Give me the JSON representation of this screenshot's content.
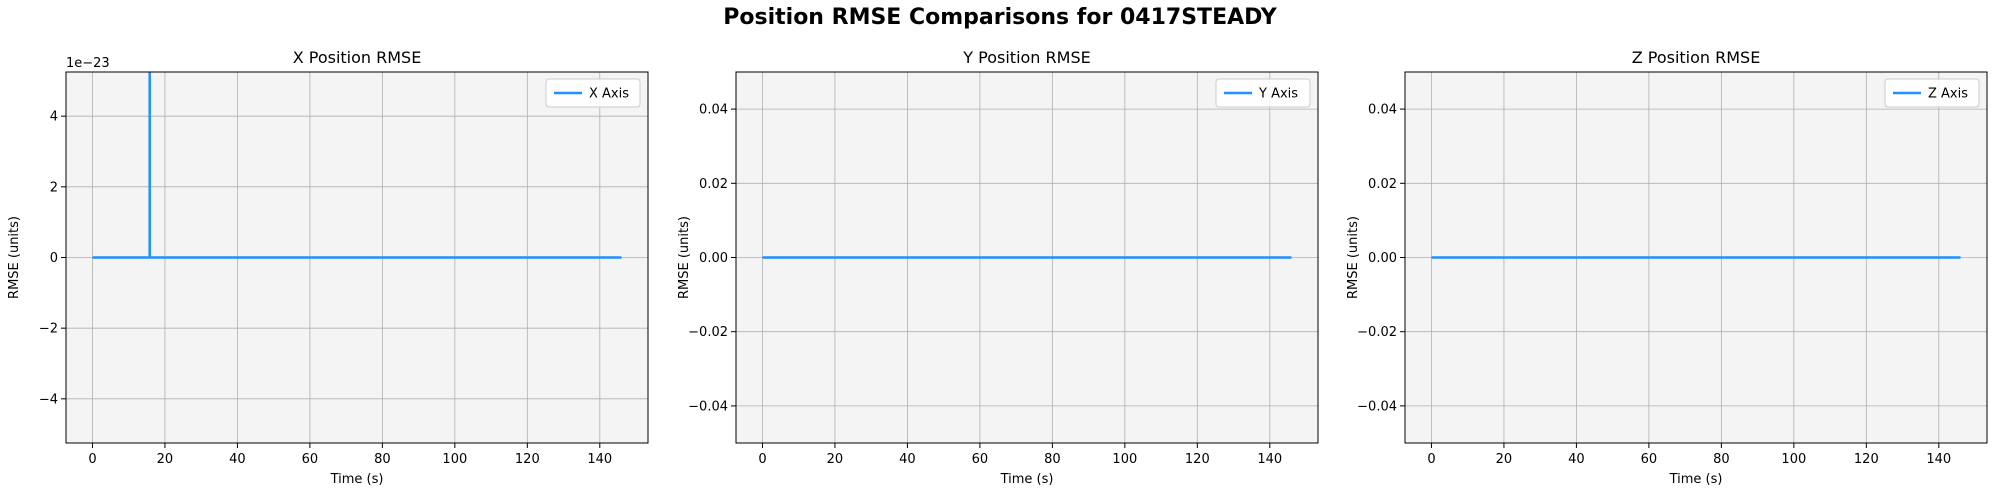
{
  "suptitle": "Position RMSE Comparisons for 0417STEADY",
  "colors": {
    "line": "#1e90ff",
    "axes_bg": "#f4f4f4",
    "grid": "#b0b0b0"
  },
  "chart_data": [
    {
      "type": "line",
      "title": "X Position RMSE",
      "xlabel": "Time (s)",
      "ylabel": "RMSE (units)",
      "xlim": [
        -7.3,
        153.3
      ],
      "ylim": [
        -5.25,
        5.25
      ],
      "xticks": [
        0,
        20,
        40,
        60,
        80,
        100,
        120,
        140
      ],
      "xtick_labels": [
        "0",
        "20",
        "40",
        "60",
        "80",
        "100",
        "120",
        "140"
      ],
      "yticks": [
        -4,
        -2,
        0,
        2,
        4
      ],
      "ytick_labels": [
        "−4",
        "−2",
        "0",
        "2",
        "4"
      ],
      "offset_text": "1e−23",
      "grid": true,
      "legend": "upper right",
      "series": [
        {
          "name": "X Axis",
          "x": [
            0,
            15.8,
            15.8,
            15.8,
            146
          ],
          "y": [
            0,
            0,
            5.5,
            0,
            0
          ]
        }
      ]
    },
    {
      "type": "line",
      "title": "Y Position RMSE",
      "xlabel": "Time (s)",
      "ylabel": "RMSE (units)",
      "xlim": [
        -7.3,
        153.3
      ],
      "ylim": [
        -0.05,
        0.05
      ],
      "xticks": [
        0,
        20,
        40,
        60,
        80,
        100,
        120,
        140
      ],
      "xtick_labels": [
        "0",
        "20",
        "40",
        "60",
        "80",
        "100",
        "120",
        "140"
      ],
      "yticks": [
        -0.04,
        -0.02,
        0,
        0.02,
        0.04
      ],
      "ytick_labels": [
        "−0.04",
        "−0.02",
        "0.00",
        "0.02",
        "0.04"
      ],
      "offset_text": "",
      "grid": true,
      "legend": "upper right",
      "series": [
        {
          "name": "Y Axis",
          "x": [
            0,
            146
          ],
          "y": [
            0,
            0
          ]
        }
      ]
    },
    {
      "type": "line",
      "title": "Z Position RMSE",
      "xlabel": "Time (s)",
      "ylabel": "RMSE (units)",
      "xlim": [
        -7.3,
        153.3
      ],
      "ylim": [
        -0.05,
        0.05
      ],
      "xticks": [
        0,
        20,
        40,
        60,
        80,
        100,
        120,
        140
      ],
      "xtick_labels": [
        "0",
        "20",
        "40",
        "60",
        "80",
        "100",
        "120",
        "140"
      ],
      "yticks": [
        -0.04,
        -0.02,
        0,
        0.02,
        0.04
      ],
      "ytick_labels": [
        "−0.04",
        "−0.02",
        "0.00",
        "0.02",
        "0.04"
      ],
      "offset_text": "",
      "grid": true,
      "legend": "upper right",
      "series": [
        {
          "name": "Z Axis",
          "x": [
            0,
            146
          ],
          "y": [
            0,
            0
          ]
        }
      ]
    }
  ]
}
